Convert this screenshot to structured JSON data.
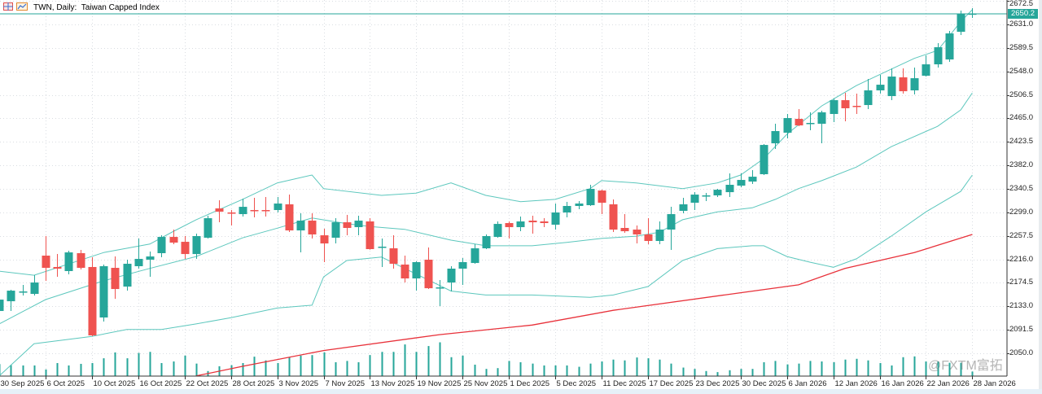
{
  "window": {
    "symbol_title": "TWN, Daily:  Taiwan Capped Index",
    "icons": [
      "window-grid-icon",
      "chart-icon"
    ]
  },
  "colors": {
    "bull": "#26a69a",
    "bear": "#ef5350",
    "bollinger": "#5cc7bd",
    "moving_average": "#e8313a",
    "current_price_line": "#26a69a",
    "volume": "#26a69a",
    "grid": "#d9dde2"
  },
  "watermark": "@FXTM富拓",
  "chart_data": {
    "type": "candlestick",
    "symbol": "TWN",
    "timeframe": "Daily",
    "current_price": "2650.2",
    "y_axis": {
      "range": [
        2009.7,
        2674.1
      ],
      "tick_labels": [
        "2672.5",
        "2631.0",
        "2589.5",
        "2548.0",
        "2506.5",
        "2465.0",
        "2423.5",
        "2382.0",
        "2340.5",
        "2299.0",
        "2257.5",
        "2216.0",
        "2174.5",
        "2133.0",
        "2091.5",
        "2050.0"
      ]
    },
    "x_axis": {
      "tick_labels": [
        {
          "bar": 0,
          "label": "30 Sep 2025"
        },
        {
          "bar": 4,
          "label": "6 Oct 2025"
        },
        {
          "bar": 8,
          "label": "10 Oct 2025"
        },
        {
          "bar": 12,
          "label": "16 Oct 2025"
        },
        {
          "bar": 16,
          "label": "22 Oct 2025"
        },
        {
          "bar": 20,
          "label": "28 Oct 2025"
        },
        {
          "bar": 24,
          "label": "3 Nov 2025"
        },
        {
          "bar": 28,
          "label": "7 Nov 2025"
        },
        {
          "bar": 32,
          "label": "13 Nov 2025"
        },
        {
          "bar": 36,
          "label": "19 Nov 2025"
        },
        {
          "bar": 40,
          "label": "25 Nov 2025"
        },
        {
          "bar": 44,
          "label": "1 Dec 2025"
        },
        {
          "bar": 48,
          "label": "5 Dec 2025"
        },
        {
          "bar": 52,
          "label": "11 Dec 2025"
        },
        {
          "bar": 56,
          "label": "17 Dec 2025"
        },
        {
          "bar": 60,
          "label": "23 Dec 2025"
        },
        {
          "bar": 64,
          "label": "30 Dec 2025"
        },
        {
          "bar": 68,
          "label": "6 Jan 2026"
        },
        {
          "bar": 72,
          "label": "12 Jan 2026"
        },
        {
          "bar": 76,
          "label": "16 Jan 2026"
        },
        {
          "bar": 80,
          "label": "22 Jan 2026"
        },
        {
          "bar": 84,
          "label": "28 Jan 2026"
        }
      ]
    },
    "grid": true,
    "candles_ohlc": [
      [
        2124.8,
        2149.2,
        2121.9,
        2144.9
      ],
      [
        2142.0,
        2162.2,
        2124.8,
        2160.7
      ],
      [
        2157.9,
        2170.8,
        2152.1,
        2159.3
      ],
      [
        2155.0,
        2188.1,
        2152.1,
        2175.1
      ],
      [
        2222.6,
        2257.1,
        2178.0,
        2201.0
      ],
      [
        2202.5,
        2225.4,
        2185.2,
        2199.6
      ],
      [
        2195.3,
        2231.2,
        2189.5,
        2228.3
      ],
      [
        2226.9,
        2232.6,
        2198.1,
        2201.0
      ],
      [
        2202.5,
        2219.7,
        2080.2,
        2081.7
      ],
      [
        2113.3,
        2206.8,
        2106.1,
        2203.9
      ],
      [
        2201.0,
        2221.1,
        2146.3,
        2163.6
      ],
      [
        2167.9,
        2215.4,
        2160.7,
        2208.2
      ],
      [
        2203.9,
        2252.8,
        2199.6,
        2216.8
      ],
      [
        2215.4,
        2229.8,
        2185.2,
        2221.1
      ],
      [
        2226.9,
        2258.5,
        2219.7,
        2255.6
      ],
      [
        2255.6,
        2268.6,
        2242.7,
        2245.6
      ],
      [
        2247.0,
        2257.1,
        2216.8,
        2225.4
      ],
      [
        2225.4,
        2261.4,
        2216.8,
        2257.1
      ],
      [
        2254.2,
        2293.0,
        2252.8,
        2288.7
      ],
      [
        2306.0,
        2320.4,
        2281.5,
        2300.2
      ],
      [
        2298.8,
        2303.1,
        2275.8,
        2297.3
      ],
      [
        2295.9,
        2323.2,
        2291.6,
        2308.8
      ],
      [
        2303.1,
        2324.7,
        2290.2,
        2302.4
      ],
      [
        2303.1,
        2326.1,
        2291.6,
        2302.4
      ],
      [
        2303.1,
        2326.1,
        2298.8,
        2314.6
      ],
      [
        2313.2,
        2330.4,
        2264.3,
        2267.1
      ],
      [
        2267.1,
        2297.3,
        2228.3,
        2284.4
      ],
      [
        2284.4,
        2297.3,
        2252.8,
        2260.0
      ],
      [
        2258.5,
        2270.0,
        2211.1,
        2244.1
      ],
      [
        2254.2,
        2288.7,
        2244.1,
        2281.5
      ],
      [
        2281.5,
        2294.5,
        2258.5,
        2271.5
      ],
      [
        2272.9,
        2293.0,
        2258.5,
        2284.4
      ],
      [
        2283.0,
        2288.7,
        2233.0,
        2234.1
      ],
      [
        2237.0,
        2252.8,
        2202.5,
        2238.4
      ],
      [
        2235.5,
        2258.5,
        2199.6,
        2208.2
      ],
      [
        2206.8,
        2222.6,
        2175.1,
        2182.3
      ],
      [
        2182.3,
        2212.5,
        2160.7,
        2211.1
      ],
      [
        2215.4,
        2237.0,
        2163.6,
        2165.0
      ],
      [
        2165.8,
        2179.4,
        2133.4,
        2166.5
      ],
      [
        2175.1,
        2203.9,
        2159.3,
        2199.6
      ],
      [
        2199.6,
        2218.3,
        2170.8,
        2211.1
      ],
      [
        2209.6,
        2242.7,
        2208.2,
        2235.5
      ],
      [
        2235.5,
        2260.0,
        2234.1,
        2257.1
      ],
      [
        2255.6,
        2283.0,
        2254.2,
        2278.6
      ],
      [
        2280.1,
        2283.0,
        2252.8,
        2272.9
      ],
      [
        2272.9,
        2291.6,
        2265.7,
        2283.0
      ],
      [
        2284.4,
        2293.0,
        2261.4,
        2281.5
      ],
      [
        2283.0,
        2288.7,
        2272.9,
        2280.1
      ],
      [
        2277.2,
        2314.6,
        2268.6,
        2298.8
      ],
      [
        2298.8,
        2317.5,
        2290.2,
        2310.3
      ],
      [
        2310.3,
        2318.9,
        2304.5,
        2314.6
      ],
      [
        2311.7,
        2347.7,
        2310.3,
        2340.5
      ],
      [
        2337.6,
        2339.0,
        2295.9,
        2316.0
      ],
      [
        2313.2,
        2321.8,
        2264.3,
        2268.6
      ],
      [
        2271.5,
        2295.9,
        2262.8,
        2265.7
      ],
      [
        2268.6,
        2275.8,
        2244.1,
        2260.0
      ],
      [
        2260.0,
        2288.7,
        2242.7,
        2248.5
      ],
      [
        2248.5,
        2283.0,
        2242.7,
        2268.6
      ],
      [
        2268.6,
        2308.8,
        2232.6,
        2295.9
      ],
      [
        2301.7,
        2324.7,
        2297.3,
        2313.2
      ],
      [
        2316.0,
        2334.7,
        2303.1,
        2330.4
      ],
      [
        2327.5,
        2333.3,
        2318.9,
        2329.0
      ],
      [
        2329.0,
        2340.5,
        2326.1,
        2339.0
      ],
      [
        2334.7,
        2367.8,
        2326.1,
        2347.7
      ],
      [
        2346.2,
        2367.8,
        2343.3,
        2356.3
      ],
      [
        2353.4,
        2373.6,
        2349.1,
        2362.0
      ],
      [
        2366.4,
        2419.6,
        2365.0,
        2418.1
      ],
      [
        2421.0,
        2455.5,
        2410.9,
        2442.6
      ],
      [
        2439.7,
        2472.8,
        2429.7,
        2465.6
      ],
      [
        2464.2,
        2481.4,
        2451.2,
        2452.6
      ],
      [
        2455.5,
        2475.7,
        2444.0,
        2457.0
      ],
      [
        2455.5,
        2478.5,
        2421.0,
        2475.7
      ],
      [
        2472.8,
        2500.1,
        2458.4,
        2497.2
      ],
      [
        2497.2,
        2510.2,
        2459.8,
        2482.9
      ],
      [
        2487.2,
        2508.7,
        2472.8,
        2485.7
      ],
      [
        2488.6,
        2534.6,
        2481.4,
        2514.5
      ],
      [
        2514.5,
        2541.8,
        2508.7,
        2524.5
      ],
      [
        2504.4,
        2553.3,
        2497.2,
        2538.9
      ],
      [
        2537.5,
        2553.3,
        2508.7,
        2513.0
      ],
      [
        2514.5,
        2554.8,
        2507.3,
        2536.0
      ],
      [
        2540.4,
        2576.3,
        2538.9,
        2560.5
      ],
      [
        2560.5,
        2597.9,
        2554.8,
        2590.7
      ],
      [
        2569.1,
        2619.5,
        2564.8,
        2615.1
      ],
      [
        2618.0,
        2655.4,
        2612.3,
        2649.7
      ],
      [
        2649.7,
        2659.7,
        2642.5,
        2650.2
      ]
    ],
    "volume_relative": [
      45,
      42,
      40,
      40,
      25,
      49,
      40,
      46,
      49,
      67,
      89,
      67,
      87,
      91,
      49,
      55,
      77,
      47,
      19,
      37,
      41,
      49,
      73,
      59,
      49,
      71,
      77,
      79,
      89,
      52,
      57,
      52,
      79,
      91,
      91,
      119,
      91,
      113,
      127,
      71,
      77,
      43,
      27,
      30,
      57,
      52,
      47,
      40,
      40,
      40,
      35,
      47,
      55,
      62,
      59,
      70,
      67,
      62,
      47,
      32,
      27,
      19,
      15,
      22,
      27,
      27,
      52,
      57,
      44,
      47,
      57,
      55,
      52,
      62,
      65,
      59,
      49,
      40,
      71,
      74,
      55,
      55,
      50,
      50,
      17
    ],
    "bollinger_upper": [
      [
        0,
        2195
      ],
      [
        3,
        2188
      ],
      [
        9,
        2228
      ],
      [
        13,
        2243
      ],
      [
        15,
        2265
      ],
      [
        17,
        2286
      ],
      [
        21,
        2322
      ],
      [
        24,
        2351
      ],
      [
        27,
        2365
      ],
      [
        28,
        2341
      ],
      [
        33,
        2329
      ],
      [
        36,
        2333
      ],
      [
        39,
        2351
      ],
      [
        42,
        2329
      ],
      [
        45,
        2318
      ],
      [
        48,
        2322
      ],
      [
        51,
        2341
      ],
      [
        52,
        2355
      ],
      [
        55,
        2351
      ],
      [
        59,
        2341
      ],
      [
        62,
        2351
      ],
      [
        64,
        2365
      ],
      [
        66,
        2394
      ],
      [
        68,
        2437
      ],
      [
        71,
        2487
      ],
      [
        74,
        2523
      ],
      [
        77,
        2552
      ],
      [
        79,
        2571
      ],
      [
        81,
        2585
      ],
      [
        82,
        2610
      ],
      [
        83,
        2636
      ],
      [
        84,
        2657
      ]
    ],
    "bollinger_middle": [
      [
        0,
        2102
      ],
      [
        4,
        2145
      ],
      [
        9,
        2178
      ],
      [
        13,
        2200
      ],
      [
        17,
        2221
      ],
      [
        21,
        2254
      ],
      [
        24,
        2271
      ],
      [
        27,
        2289
      ],
      [
        30,
        2279
      ],
      [
        32,
        2274
      ],
      [
        35,
        2269
      ],
      [
        39,
        2250
      ],
      [
        42,
        2240
      ],
      [
        46,
        2240
      ],
      [
        49,
        2246
      ],
      [
        52,
        2253
      ],
      [
        55,
        2257
      ],
      [
        57,
        2264
      ],
      [
        59,
        2286
      ],
      [
        62,
        2300
      ],
      [
        65,
        2307
      ],
      [
        67,
        2322
      ],
      [
        69,
        2341
      ],
      [
        71,
        2355
      ],
      [
        74,
        2379
      ],
      [
        77,
        2415
      ],
      [
        81,
        2451
      ],
      [
        83,
        2480
      ],
      [
        84,
        2510
      ]
    ],
    "bollinger_lower": [
      [
        0,
        2010
      ],
      [
        3,
        2067
      ],
      [
        8,
        2080
      ],
      [
        11,
        2092
      ],
      [
        14,
        2092
      ],
      [
        17,
        2102
      ],
      [
        20,
        2113
      ],
      [
        24,
        2130
      ],
      [
        27,
        2135
      ],
      [
        28,
        2185
      ],
      [
        30,
        2214
      ],
      [
        33,
        2220
      ],
      [
        35,
        2200
      ],
      [
        39,
        2160
      ],
      [
        42,
        2153
      ],
      [
        46,
        2153
      ],
      [
        51,
        2149
      ],
      [
        53,
        2153
      ],
      [
        56,
        2168
      ],
      [
        59,
        2214
      ],
      [
        62,
        2235
      ],
      [
        65,
        2240
      ],
      [
        66,
        2240
      ],
      [
        68,
        2221
      ],
      [
        70,
        2211
      ],
      [
        72,
        2202
      ],
      [
        74,
        2217
      ],
      [
        77,
        2257
      ],
      [
        80,
        2300
      ],
      [
        83,
        2336
      ],
      [
        84,
        2365
      ]
    ],
    "moving_average": [
      [
        17,
        2010
      ],
      [
        21,
        2027
      ],
      [
        28,
        2055
      ],
      [
        38,
        2083
      ],
      [
        46,
        2100
      ],
      [
        53,
        2126
      ],
      [
        64,
        2157
      ],
      [
        69,
        2171
      ],
      [
        73,
        2200
      ],
      [
        79,
        2228
      ],
      [
        84,
        2260
      ]
    ]
  }
}
